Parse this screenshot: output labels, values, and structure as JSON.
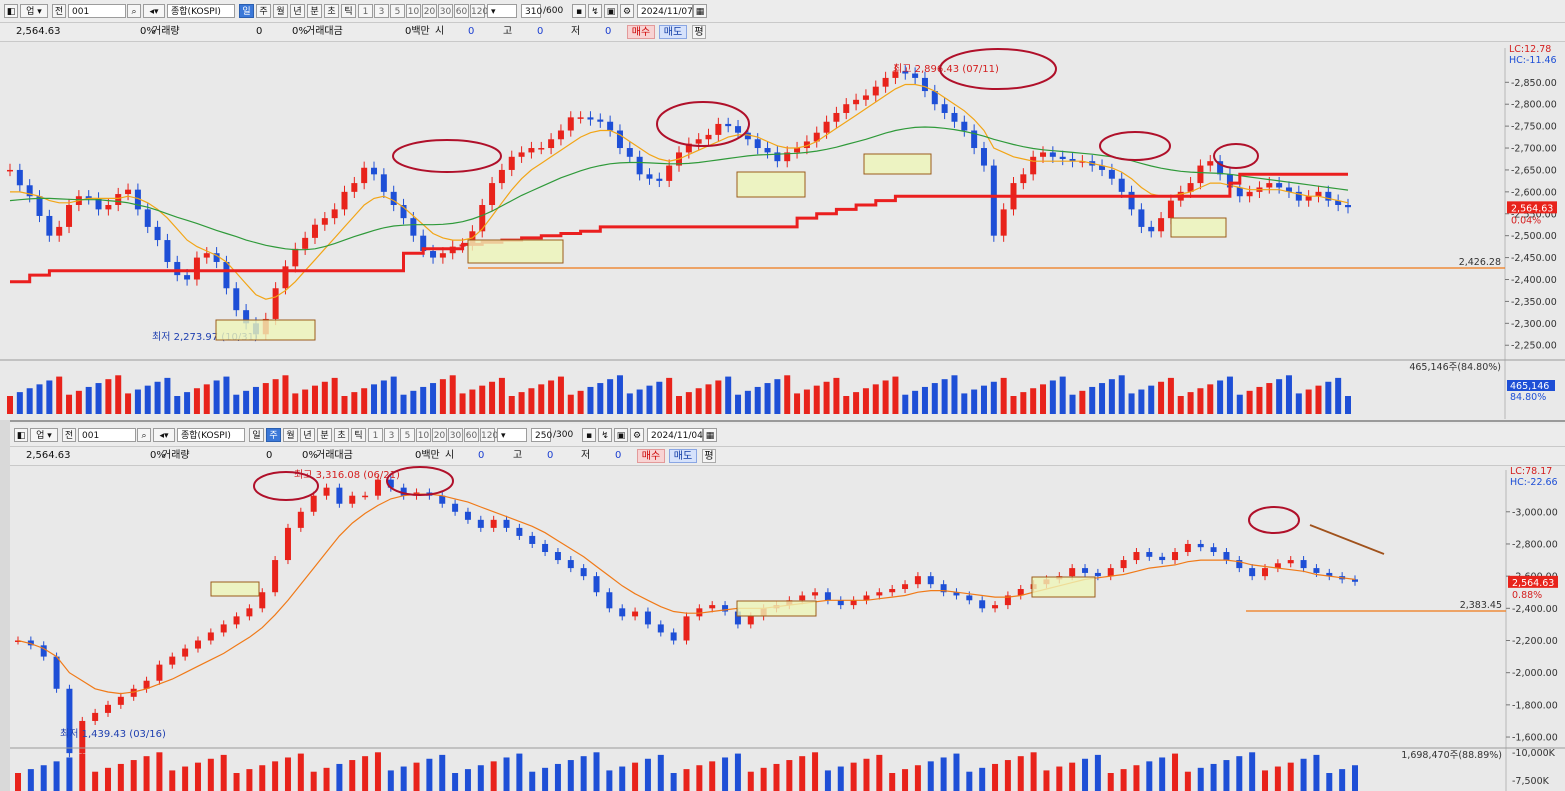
{
  "chart1": {
    "toolbar": {
      "up": "업",
      "jeon": "전",
      "code": "001",
      "name": "종합(KOSPI)",
      "periods": [
        "일",
        "주",
        "월",
        "년",
        "분",
        "초",
        "틱"
      ],
      "active_period": "일",
      "minutes": [
        "1",
        "3",
        "5",
        "10",
        "20",
        "30",
        "60",
        "120"
      ],
      "count": "310",
      "total": "/600",
      "date": "2024/11/07"
    },
    "info": {
      "price": "2,564.63",
      "pct1": "0%",
      "vol_label": "거래량",
      "vol": "0",
      "pct2": "0%",
      "amt_label": "거래대금",
      "amt": "0백만",
      "o_label": "시",
      "o": "0",
      "h_label": "고",
      "h": "0",
      "l_label": "저",
      "l": "0",
      "buy": "매수",
      "sell": "매도",
      "pyeong": "평"
    },
    "annotations": {
      "high": "최고 2,896.43 (07/11)",
      "low": "최저 2,273.97 (10/31)",
      "lc": "LC:12.78",
      "hc": "HC:-11.46",
      "hline": "2,426.28",
      "last": "2,564.63",
      "last_pct": "0.04%",
      "vol_header": "465,146주(84.80%)",
      "vol_last": "465,146",
      "vol_pct": "84.80%"
    },
    "chart_data": {
      "type": "line",
      "title": "종합(KOSPI) 일봉",
      "y_ticks": [
        "2,850.00",
        "2,800.00",
        "2,750.00",
        "2,700.00",
        "2,650.00",
        "2,600.00",
        "2,550.00",
        "2,500.00",
        "2,450.00",
        "2,400.00",
        "2,350.00",
        "2,300.00",
        "2,250.00"
      ],
      "ylim": [
        2230,
        2910
      ],
      "series": [
        {
          "values": [
            2650,
            2615,
            2590,
            2545,
            2500,
            2520,
            2570,
            2590,
            2585,
            2560,
            2570,
            2595,
            2605,
            2560,
            2520,
            2490,
            2440,
            2410,
            2400,
            2450,
            2460,
            2440,
            2380,
            2330,
            2300,
            2275,
            2310,
            2380,
            2430,
            2470,
            2495,
            2525,
            2540,
            2560,
            2600,
            2620,
            2655,
            2640,
            2600,
            2570,
            2540,
            2500,
            2465,
            2450,
            2460,
            2475,
            2480,
            2510,
            2570,
            2620,
            2650,
            2680,
            2690,
            2700,
            2700,
            2720,
            2740,
            2770,
            2770,
            2765,
            2760,
            2740,
            2700,
            2680,
            2640,
            2630,
            2625,
            2660,
            2690,
            2710,
            2720,
            2730,
            2755,
            2750,
            2735,
            2720,
            2700,
            2690,
            2670,
            2690,
            2700,
            2715,
            2735,
            2760,
            2780,
            2800,
            2810,
            2820,
            2840,
            2860,
            2875,
            2870,
            2860,
            2830,
            2800,
            2780,
            2760,
            2740,
            2700,
            2660,
            2500,
            2560,
            2620,
            2640,
            2680,
            2690,
            2680,
            2675,
            2670,
            2670,
            2660,
            2650,
            2630,
            2600,
            2560,
            2520,
            2510,
            2540,
            2580,
            2600,
            2620,
            2660,
            2670,
            2640,
            2610,
            2590,
            2600,
            2610,
            2620,
            2610,
            2600,
            2580,
            2590,
            2600,
            2580,
            2570,
            2565
          ]
        },
        {
          "values": [
            2600,
            2600,
            2595,
            2590,
            2580,
            2575,
            2575,
            2580,
            2585,
            2585,
            2585,
            2585,
            2590,
            2585,
            2575,
            2560,
            2540,
            2515,
            2490,
            2475,
            2465,
            2455,
            2440,
            2415,
            2390,
            2365,
            2355,
            2360,
            2375,
            2395,
            2420,
            2445,
            2470,
            2495,
            2520,
            2545,
            2570,
            2585,
            2590,
            2580,
            2565,
            2545,
            2525,
            2505,
            2495,
            2490,
            2490,
            2495,
            2515,
            2545,
            2575,
            2605,
            2630,
            2650,
            2665,
            2680,
            2695,
            2710,
            2725,
            2735,
            2740,
            2740,
            2730,
            2715,
            2700,
            2685,
            2675,
            2670,
            2675,
            2685,
            2695,
            2705,
            2715,
            2725,
            2730,
            2730,
            2725,
            2715,
            2705,
            2700,
            2700,
            2705,
            2715,
            2730,
            2745,
            2760,
            2775,
            2790,
            2805,
            2820,
            2835,
            2845,
            2845,
            2840,
            2830,
            2815,
            2800,
            2785,
            2765,
            2740,
            2700,
            2690,
            2680,
            2675,
            2670,
            2670,
            2670,
            2670,
            2670,
            2670,
            2665,
            2660,
            2655,
            2645,
            2630,
            2610,
            2595,
            2590,
            2590,
            2595,
            2600,
            2610,
            2620,
            2620,
            2615,
            2610,
            2605,
            2605,
            2605,
            2605,
            2600,
            2595,
            2590,
            2590,
            2585,
            2580,
            2575
          ]
        },
        {
          "values": [
            2580,
            2582,
            2584,
            2585,
            2585,
            2584,
            2583,
            2582,
            2582,
            2582,
            2580,
            2578,
            2575,
            2570,
            2565,
            2558,
            2550,
            2542,
            2535,
            2528,
            2520,
            2512,
            2505,
            2498,
            2490,
            2484,
            2478,
            2474,
            2470,
            2468,
            2468,
            2470,
            2475,
            2482,
            2490,
            2498,
            2505,
            2512,
            2518,
            2522,
            2524,
            2525,
            2525,
            2525,
            2526,
            2528,
            2532,
            2538,
            2546,
            2556,
            2568,
            2580,
            2592,
            2602,
            2612,
            2622,
            2632,
            2640,
            2648,
            2655,
            2660,
            2664,
            2666,
            2667,
            2667,
            2666,
            2665,
            2664,
            2664,
            2665,
            2667,
            2670,
            2673,
            2676,
            2679,
            2682,
            2684,
            2685,
            2686,
            2687,
            2688,
            2690,
            2693,
            2697,
            2702,
            2708,
            2714,
            2720,
            2727,
            2734,
            2740,
            2744,
            2747,
            2748,
            2747,
            2745,
            2742,
            2738,
            2733,
            2727,
            2720,
            2714,
            2708,
            2703,
            2699,
            2696,
            2694,
            2692,
            2690,
            2688,
            2686,
            2683,
            2680,
            2676,
            2671,
            2665,
            2659,
            2654,
            2650,
            2647,
            2645,
            2644,
            2643,
            2642,
            2640,
            2637,
            2634,
            2631,
            2628,
            2625,
            2622,
            2619,
            2616,
            2613,
            2610,
            2607,
            2604
          ]
        },
        {
          "values": [
            2395,
            2395,
            2410,
            2410,
            2420,
            2420,
            2420,
            2420,
            2420,
            2420,
            2420,
            2420,
            2420,
            2420,
            2420,
            2420,
            2420,
            2420,
            2420,
            2420,
            2420,
            2420,
            2420,
            2420,
            2420,
            2420,
            2420,
            2420,
            2420,
            2420,
            2420,
            2420,
            2420,
            2420,
            2420,
            2420,
            2420,
            2420,
            2420,
            2420,
            2460,
            2460,
            2470,
            2470,
            2470,
            2470,
            2480,
            2480,
            2485,
            2485,
            2490,
            2490,
            2495,
            2495,
            2500,
            2500,
            2505,
            2505,
            2510,
            2510,
            2520,
            2520,
            2520,
            2520,
            2520,
            2520,
            2520,
            2520,
            2520,
            2520,
            2520,
            2520,
            2520,
            2520,
            2520,
            2520,
            2520,
            2520,
            2520,
            2520,
            2540,
            2540,
            2550,
            2550,
            2560,
            2560,
            2570,
            2570,
            2580,
            2580,
            2590,
            2590,
            2590,
            2590,
            2590,
            2590,
            2590,
            2590,
            2590,
            2590,
            2590,
            2590,
            2590,
            2590,
            2590,
            2590,
            2590,
            2590,
            2590,
            2590,
            2590,
            2590,
            2590,
            2590,
            2590,
            2590,
            2590,
            2590,
            2590,
            2590,
            2590,
            2590,
            2590,
            2590,
            2620,
            2640,
            2640,
            2640,
            2640,
            2640,
            2640,
            2640,
            2640,
            2640,
            2640,
            2640,
            2640
          ]
        }
      ]
    }
  },
  "chart2": {
    "toolbar": {
      "up": "업",
      "jeon": "전",
      "code": "001",
      "name": "종합(KOSPI)",
      "periods": [
        "일",
        "주",
        "월",
        "년",
        "분",
        "초",
        "틱"
      ],
      "active_period": "주",
      "minutes": [
        "1",
        "3",
        "5",
        "10",
        "20",
        "30",
        "60",
        "120"
      ],
      "count": "250",
      "total": "/300",
      "date": "2024/11/04"
    },
    "info": {
      "price": "2,564.63",
      "pct1": "0%",
      "vol_label": "거래량",
      "vol": "0",
      "pct2": "0%",
      "amt_label": "거래대금",
      "amt": "0백만",
      "o_label": "시",
      "o": "0",
      "h_label": "고",
      "h": "0",
      "l_label": "저",
      "l": "0",
      "buy": "매수",
      "sell": "매도",
      "pyeong": "평"
    },
    "annotations": {
      "high": "최고 3,316.08 (06/21)",
      "low": "최저 1,439.43 (03/16)",
      "lc": "LC:78.17",
      "hc": "HC:-22.66",
      "hline": "2,383.45",
      "last": "2,564.63",
      "last_pct": "0.88%",
      "vol_header": "1,698,470주(88.89%)",
      "vol_ticks": [
        "10,000K",
        "7,500K"
      ]
    },
    "chart_data": {
      "type": "line",
      "title": "종합(KOSPI) 주봉",
      "y_ticks": [
        "3,000.00",
        "2,800.00",
        "2,600.00",
        "2,400.00",
        "2,200.00",
        "2,000.00",
        "1,800.00",
        "1,600.00"
      ],
      "ylim": [
        1420,
        3210
      ],
      "series": [
        {
          "values": [
            2200,
            2170,
            2100,
            1900,
            1500,
            1700,
            1750,
            1800,
            1850,
            1900,
            1950,
            2050,
            2100,
            2150,
            2200,
            2250,
            2300,
            2350,
            2400,
            2500,
            2700,
            2900,
            3000,
            3100,
            3150,
            3050,
            3100,
            3100,
            3200,
            3150,
            3100,
            3120,
            3100,
            3050,
            3000,
            2950,
            2900,
            2950,
            2900,
            2850,
            2800,
            2750,
            2700,
            2650,
            2600,
            2500,
            2400,
            2350,
            2380,
            2300,
            2250,
            2200,
            2350,
            2400,
            2420,
            2380,
            2300,
            2350,
            2400,
            2420,
            2450,
            2480,
            2500,
            2450,
            2420,
            2450,
            2480,
            2500,
            2520,
            2550,
            2600,
            2550,
            2500,
            2480,
            2450,
            2400,
            2420,
            2480,
            2520,
            2550,
            2580,
            2600,
            2650,
            2620,
            2600,
            2650,
            2700,
            2750,
            2720,
            2700,
            2750,
            2800,
            2780,
            2750,
            2700,
            2650,
            2600,
            2650,
            2680,
            2700,
            2650,
            2620,
            2600,
            2580,
            2565
          ]
        },
        {
          "values": [
            2200,
            2180,
            2150,
            2100,
            2000,
            1950,
            1900,
            1880,
            1870,
            1880,
            1900,
            1930,
            1960,
            2000,
            2040,
            2080,
            2120,
            2170,
            2220,
            2280,
            2360,
            2450,
            2550,
            2650,
            2750,
            2850,
            2930,
            2990,
            3040,
            3080,
            3100,
            3110,
            3110,
            3100,
            3080,
            3060,
            3030,
            3000,
            2970,
            2940,
            2910,
            2870,
            2820,
            2770,
            2720,
            2660,
            2600,
            2540,
            2490,
            2450,
            2410,
            2380,
            2370,
            2370,
            2380,
            2390,
            2400,
            2400,
            2400,
            2410,
            2420,
            2430,
            2440,
            2450,
            2450,
            2450,
            2450,
            2460,
            2470,
            2480,
            2500,
            2510,
            2510,
            2500,
            2490,
            2480,
            2470,
            2470,
            2480,
            2500,
            2520,
            2540,
            2560,
            2580,
            2590,
            2600,
            2610,
            2630,
            2650,
            2660,
            2670,
            2690,
            2700,
            2700,
            2700,
            2690,
            2670,
            2660,
            2650,
            2640,
            2630,
            2610,
            2600,
            2590,
            2580
          ]
        }
      ]
    }
  }
}
